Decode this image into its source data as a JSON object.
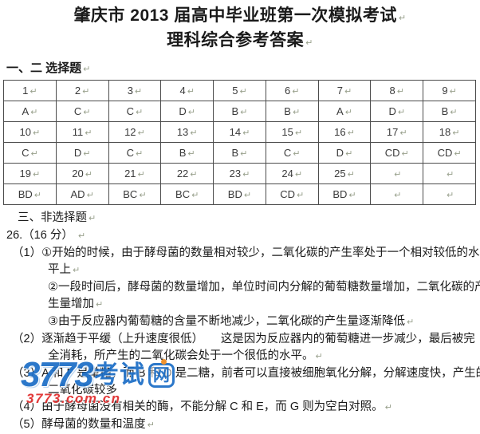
{
  "marks": {
    "pilcrow": "↵"
  },
  "title": {
    "line1": "肇庆市 2013 届高中毕业班第一次模拟考试",
    "line2": "理科综合参考答案"
  },
  "choice_section": {
    "heading": "一、二 选择题"
  },
  "answer_table": {
    "rows": [
      [
        "1",
        "2",
        "3",
        "4",
        "5",
        "6",
        "7",
        "8",
        "9"
      ],
      [
        "A",
        "C",
        "C",
        "D",
        "B",
        "B",
        "A",
        "D",
        "B"
      ],
      [
        "10",
        "11",
        "12",
        "13",
        "14",
        "15",
        "16",
        "17",
        "18"
      ],
      [
        "C",
        "D",
        "C",
        "B",
        "B",
        "C",
        "D",
        "CD",
        "CD"
      ],
      [
        "19",
        "20",
        "21",
        "22",
        "23",
        "24",
        "25",
        "",
        ""
      ],
      [
        "BD",
        "AD",
        "BC",
        "BC",
        "BD",
        "CD",
        "BD",
        "",
        ""
      ]
    ]
  },
  "non_choice_section": {
    "heading": "三、非选择题",
    "q26_label": "26.（16 分） ",
    "lines": [
      {
        "text": "（1）①开始的时候，由于酵母菌的数量相对较少，二氧化碳的产生率处于一个相对较低的水",
        "indent": 1,
        "pilcrow": false
      },
      {
        "text": "平上",
        "indent": 2,
        "pilcrow": true
      },
      {
        "text": "②一段时间后，酵母菌的数量增加，单位时间内分解的葡萄糖数量增加，二氧化碳的产",
        "indent": 2,
        "pilcrow": false
      },
      {
        "text": "生量增加",
        "indent": 2,
        "pilcrow": true
      },
      {
        "text": "③由于反应器内葡萄糖的含量不断地减少，二氧化碳的产生量逐渐降低",
        "indent": 2,
        "pilcrow": true
      },
      {
        "text": "（2）逐渐趋于平缓（上升速度很低）　　这是因为反应器内的葡萄糖进一步减少，最后被完",
        "indent": 1,
        "pilcrow": false
      },
      {
        "text": "全消耗，所产生的二氧化碳会处于一个很低的水平。",
        "indent": 2,
        "pilcrow": true
      },
      {
        "text": "（3）A 和 F 是单糖，而 B 和 D 是二糖，前者可以直接被细胞氧化分解，分解速度快，产生的",
        "indent": 1,
        "pilcrow": false
      },
      {
        "text": "二氧化碳较多",
        "indent": 2,
        "pilcrow": false
      },
      {
        "text": "（4）由于酵母菌没有相关的酶，不能分解 C 和 E，而 G 则为空白对照。",
        "indent": 1,
        "pilcrow": true
      },
      {
        "text": "（5）酵母菌的数量和温度",
        "indent": 1,
        "pilcrow": true
      }
    ]
  },
  "watermark": {
    "digits": "3773",
    "word": "考试",
    "net_char": "网",
    "url": "3773.com.cn",
    "blue": "#1d6ec6",
    "red": "#e02c2c",
    "orange": "#f08a1d"
  }
}
